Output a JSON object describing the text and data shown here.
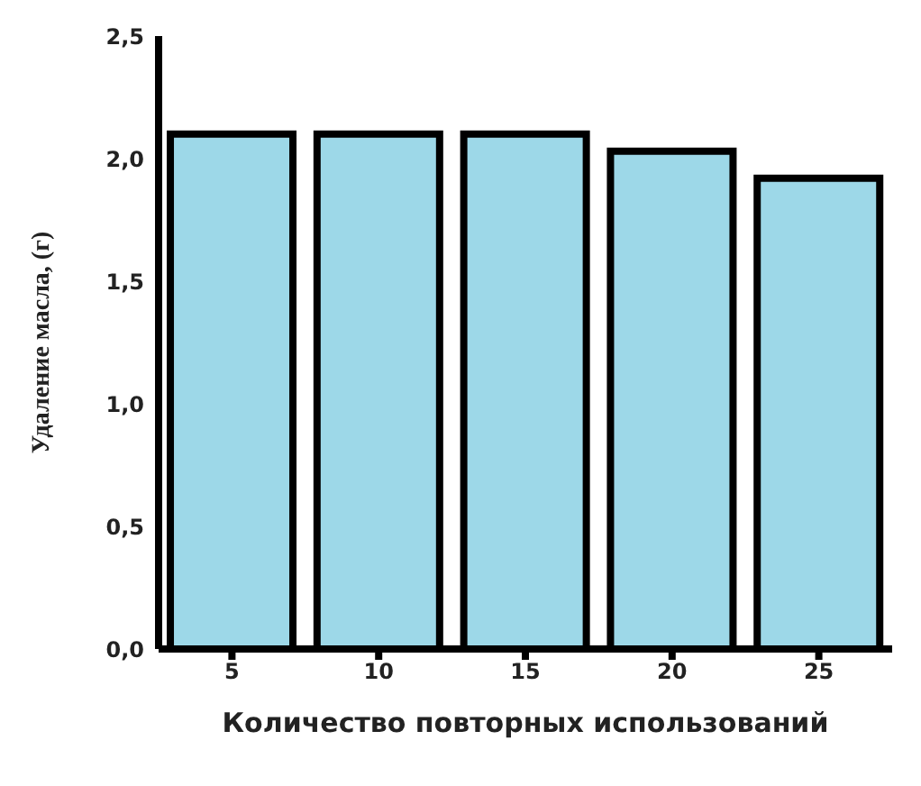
{
  "chart_data": {
    "type": "bar",
    "xlabel": "Количество повторных использований",
    "ylabel": "Удаление масла, (г)",
    "categories": [
      "5",
      "10",
      "15",
      "20",
      "25"
    ],
    "values": [
      2.1,
      2.1,
      2.1,
      2.03,
      1.92
    ],
    "color": "#9dd8e8",
    "ylim": [
      0,
      2.5
    ],
    "yticks": [
      {
        "value": 0,
        "label": "0,0"
      },
      {
        "value": 0.5,
        "label": "0,5"
      },
      {
        "value": 1,
        "label": "1,0"
      },
      {
        "value": 1.5,
        "label": "1,5"
      },
      {
        "value": 2,
        "label": "2,0"
      },
      {
        "value": 2.5,
        "label": "2,5"
      }
    ],
    "grid": false,
    "legend": false
  }
}
